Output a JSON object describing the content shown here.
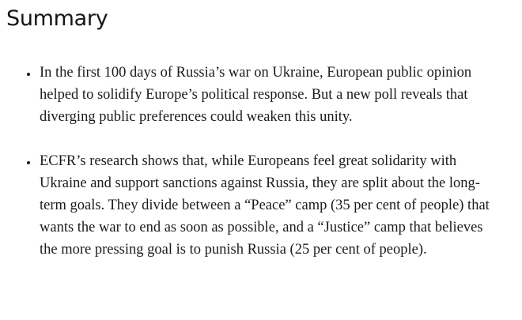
{
  "page": {
    "background_color": "#ffffff",
    "text_color": "#1b1b1b",
    "heading_color": "#13151a"
  },
  "summary": {
    "heading": "Summary",
    "bullets": [
      "In the first 100 days of Russia’s war on Ukraine, European public opinion helped to solidify Europe’s political response. But a new poll reveals that diverging public preferences could weaken this unity.",
      "ECFR’s research shows that, while Europeans feel great solidarity with Ukraine and support sanctions against Russia, they are split about the long-term goals. They divide between a “Peace” camp (35 per cent of people) that wants the war to end as soon as possible, and a “Justice” camp that believes the more pressing goal is to punish Russia (25 per cent of people)."
    ]
  }
}
